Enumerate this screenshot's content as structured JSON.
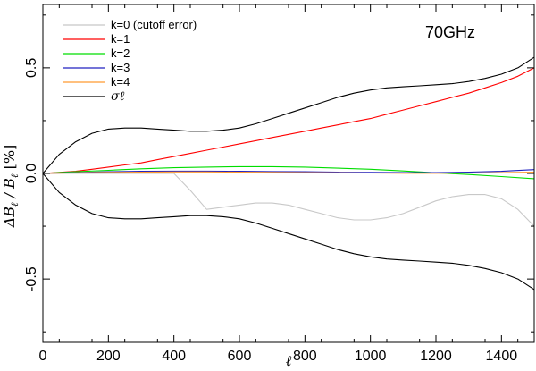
{
  "chart_data": {
    "type": "line",
    "annotation": "70GHz",
    "xlabel": "ℓ",
    "ylabel": "ΔB_ℓ / B_ℓ [%]",
    "xlim": [
      0,
      1500
    ],
    "ylim": [
      -0.8,
      0.8
    ],
    "xticks": [
      0,
      200,
      400,
      600,
      800,
      1000,
      1200,
      1400
    ],
    "yticks": [
      -0.5,
      0.0,
      0.5
    ],
    "ytick_labels": [
      "-0.5",
      "0.0",
      "0.5"
    ],
    "legend_position": "top-left",
    "series": [
      {
        "name": "k=0 (cutoff error)",
        "color": "#c8c8c8",
        "x": [
          0,
          50,
          100,
          150,
          200,
          250,
          300,
          350,
          400,
          450,
          500,
          550,
          600,
          650,
          700,
          750,
          800,
          850,
          900,
          950,
          1000,
          1050,
          1100,
          1150,
          1200,
          1250,
          1300,
          1350,
          1400,
          1450,
          1500
        ],
        "y": [
          0,
          0,
          0,
          0,
          0,
          0,
          0,
          0,
          0,
          -0.08,
          -0.17,
          -0.16,
          -0.15,
          -0.14,
          -0.14,
          -0.15,
          -0.17,
          -0.19,
          -0.21,
          -0.22,
          -0.22,
          -0.21,
          -0.19,
          -0.16,
          -0.13,
          -0.11,
          -0.1,
          -0.1,
          -0.12,
          -0.17,
          -0.25
        ]
      },
      {
        "name": "k=1",
        "color": "#ff0000",
        "x": [
          0,
          50,
          100,
          150,
          200,
          250,
          300,
          350,
          400,
          450,
          500,
          550,
          600,
          650,
          700,
          750,
          800,
          850,
          900,
          950,
          1000,
          1050,
          1100,
          1150,
          1200,
          1250,
          1300,
          1350,
          1400,
          1450,
          1500
        ],
        "y": [
          0,
          0.005,
          0.01,
          0.02,
          0.03,
          0.04,
          0.05,
          0.065,
          0.08,
          0.095,
          0.11,
          0.125,
          0.14,
          0.155,
          0.17,
          0.185,
          0.2,
          0.215,
          0.23,
          0.245,
          0.26,
          0.28,
          0.3,
          0.32,
          0.34,
          0.36,
          0.38,
          0.405,
          0.43,
          0.46,
          0.5
        ]
      },
      {
        "name": "k=2",
        "color": "#00dd00",
        "x": [
          0,
          100,
          200,
          300,
          400,
          500,
          600,
          700,
          800,
          900,
          1000,
          1100,
          1200,
          1300,
          1400,
          1500
        ],
        "y": [
          0,
          0.008,
          0.015,
          0.022,
          0.027,
          0.03,
          0.032,
          0.032,
          0.03,
          0.025,
          0.02,
          0.012,
          0.003,
          -0.005,
          -0.015,
          -0.025
        ]
      },
      {
        "name": "k=3",
        "color": "#2020c0",
        "x": [
          0,
          100,
          200,
          300,
          400,
          500,
          600,
          700,
          800,
          900,
          1000,
          1100,
          1200,
          1300,
          1400,
          1500
        ],
        "y": [
          0,
          0.004,
          0.008,
          0.01,
          0.011,
          0.011,
          0.01,
          0.009,
          0.008,
          0.006,
          0.005,
          0.004,
          0.004,
          0.006,
          0.01,
          0.018
        ]
      },
      {
        "name": "k=4",
        "color": "#ff9a30",
        "x": [
          0,
          100,
          200,
          300,
          400,
          500,
          600,
          700,
          800,
          900,
          1000,
          1100,
          1200,
          1300,
          1400,
          1500
        ],
        "y": [
          0,
          0.003,
          0.005,
          0.006,
          0.007,
          0.007,
          0.006,
          0.005,
          0.004,
          0.003,
          0.002,
          0.001,
          0.001,
          0.002,
          0.004,
          0.006
        ]
      },
      {
        "name": "σ_ℓ",
        "color": "#000000",
        "x": [
          0,
          50,
          100,
          150,
          200,
          250,
          300,
          350,
          400,
          450,
          500,
          550,
          600,
          650,
          700,
          750,
          800,
          850,
          900,
          950,
          1000,
          1050,
          1100,
          1150,
          1200,
          1250,
          1300,
          1350,
          1400,
          1450,
          1500
        ],
        "y": [
          0,
          0.09,
          0.15,
          0.19,
          0.21,
          0.215,
          0.215,
          0.21,
          0.205,
          0.2,
          0.2,
          0.205,
          0.215,
          0.235,
          0.26,
          0.285,
          0.31,
          0.335,
          0.36,
          0.38,
          0.395,
          0.405,
          0.41,
          0.415,
          0.42,
          0.425,
          0.435,
          0.45,
          0.47,
          0.5,
          0.55
        ]
      },
      {
        "name": "",
        "color": "#000000",
        "mirror_of": "σ_ℓ",
        "x": [
          0,
          50,
          100,
          150,
          200,
          250,
          300,
          350,
          400,
          450,
          500,
          550,
          600,
          650,
          700,
          750,
          800,
          850,
          900,
          950,
          1000,
          1050,
          1100,
          1150,
          1200,
          1250,
          1300,
          1350,
          1400,
          1450,
          1500
        ],
        "y": [
          0,
          -0.09,
          -0.15,
          -0.19,
          -0.21,
          -0.215,
          -0.215,
          -0.21,
          -0.205,
          -0.2,
          -0.2,
          -0.205,
          -0.215,
          -0.235,
          -0.26,
          -0.285,
          -0.31,
          -0.335,
          -0.36,
          -0.38,
          -0.395,
          -0.405,
          -0.41,
          -0.415,
          -0.42,
          -0.425,
          -0.435,
          -0.45,
          -0.47,
          -0.5,
          -0.55
        ]
      }
    ]
  }
}
